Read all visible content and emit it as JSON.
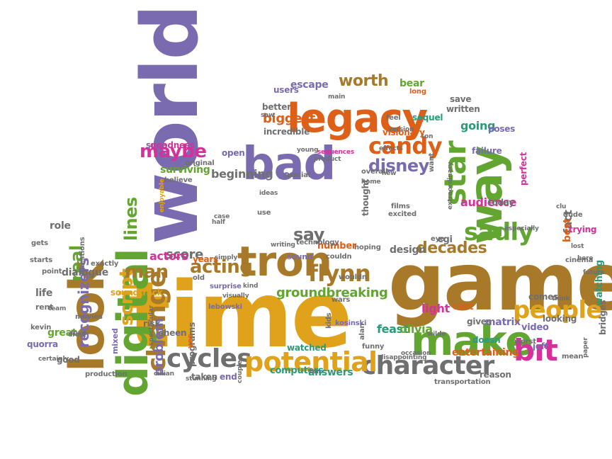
{
  "palette": {
    "purple": "#7a6bb0",
    "mustard": "#e0a11b",
    "brown": "#a87928",
    "green": "#62a631",
    "orange": "#dd5f18",
    "teal": "#2a9a79",
    "pink": "#d6309a",
    "gray": "#6f6f6f"
  },
  "words": [
    {
      "t": "world",
      "c": "purple",
      "v": true
    },
    {
      "t": "time",
      "c": "mustard",
      "v": false
    },
    {
      "t": "game",
      "c": "brown",
      "v": false
    },
    {
      "t": "legacy",
      "c": "orange",
      "v": false
    },
    {
      "t": "bad",
      "c": "purple",
      "v": false
    },
    {
      "t": "tron",
      "c": "brown",
      "v": false
    },
    {
      "t": "make",
      "c": "green",
      "v": false
    },
    {
      "t": "digital",
      "c": "green",
      "v": true
    },
    {
      "t": "way",
      "c": "green",
      "v": true
    },
    {
      "t": "look",
      "c": "brown",
      "v": true
    },
    {
      "t": "people",
      "c": "mustard",
      "v": false
    },
    {
      "t": "character",
      "c": "gray",
      "v": false
    },
    {
      "t": "cycles",
      "c": "gray",
      "v": false
    },
    {
      "t": "potential",
      "c": "mustard",
      "v": false
    },
    {
      "t": "change",
      "c": "brown",
      "v": true
    },
    {
      "t": "sadly",
      "c": "green",
      "v": false
    },
    {
      "t": "star",
      "c": "green",
      "v": true
    },
    {
      "t": "candy",
      "c": "orange",
      "v": false
    },
    {
      "t": "maybe",
      "c": "pink",
      "v": false
    },
    {
      "t": "flynn",
      "c": "brown",
      "v": false
    },
    {
      "t": "bit",
      "c": "pink",
      "v": false
    },
    {
      "t": "disney",
      "c": "purple",
      "v": false
    },
    {
      "t": "worth",
      "c": "brown",
      "v": false
    },
    {
      "t": "acting",
      "c": "brown",
      "v": false
    },
    {
      "t": "script",
      "c": "mustard",
      "v": true
    },
    {
      "t": "lines",
      "c": "green",
      "v": true
    },
    {
      "t": "man",
      "c": "brown",
      "v": false
    },
    {
      "t": "say",
      "c": "gray",
      "v": false
    },
    {
      "t": "real",
      "c": "green",
      "v": true
    },
    {
      "t": "decades",
      "c": "brown",
      "v": false
    },
    {
      "t": "beginning",
      "c": "gray",
      "v": false
    },
    {
      "t": "score",
      "c": "gray",
      "v": false
    },
    {
      "t": "groundbreaking",
      "c": "green",
      "v": false
    },
    {
      "t": "recognizers",
      "c": "purple",
      "v": true
    },
    {
      "t": "problem",
      "c": "purple",
      "v": true
    },
    {
      "t": "audience",
      "c": "pink",
      "v": false
    },
    {
      "t": "escape",
      "c": "purple",
      "v": false
    },
    {
      "t": "bear",
      "c": "green",
      "v": false
    },
    {
      "t": "incredible",
      "c": "gray",
      "v": false
    },
    {
      "t": "biggest",
      "c": "orange",
      "v": false
    },
    {
      "t": "going",
      "c": "teal",
      "v": false
    },
    {
      "t": "actors",
      "c": "pink",
      "v": false
    },
    {
      "t": "entertaining",
      "c": "orange",
      "v": false
    },
    {
      "t": "answers",
      "c": "teal",
      "v": false
    },
    {
      "t": "computers",
      "c": "teal",
      "v": false
    },
    {
      "t": "design",
      "c": "gray",
      "v": false
    },
    {
      "t": "feast",
      "c": "teal",
      "v": false
    },
    {
      "t": "olivia",
      "c": "green",
      "v": false
    },
    {
      "t": "light",
      "c": "pink",
      "v": false
    },
    {
      "t": "cast",
      "c": "orange",
      "v": false
    },
    {
      "t": "matrix",
      "c": "purple",
      "v": false
    },
    {
      "t": "video",
      "c": "purple",
      "v": false
    },
    {
      "t": "reason",
      "c": "gray",
      "v": false
    },
    {
      "t": "dialogue",
      "c": "gray",
      "v": false
    },
    {
      "t": "surviving",
      "c": "green",
      "v": false
    },
    {
      "t": "goes",
      "c": "purple",
      "v": false
    },
    {
      "t": "ideas",
      "c": "gray",
      "v": false
    },
    {
      "t": "number",
      "c": "orange",
      "v": false
    },
    {
      "t": "sound",
      "c": "purple",
      "v": false
    },
    {
      "t": "technology",
      "c": "gray",
      "v": false
    },
    {
      "t": "role",
      "c": "gray",
      "v": false
    },
    {
      "t": "life",
      "c": "gray",
      "v": false
    },
    {
      "t": "rent",
      "c": "gray",
      "v": false
    },
    {
      "t": "great",
      "c": "green",
      "v": false
    },
    {
      "t": "good",
      "c": "gray",
      "v": false
    },
    {
      "t": "production",
      "c": "gray",
      "v": false
    },
    {
      "t": "taken",
      "c": "gray",
      "v": false
    },
    {
      "t": "end",
      "c": "purple",
      "v": false
    },
    {
      "t": "watched",
      "c": "teal",
      "v": false
    },
    {
      "t": "kosinski",
      "c": "purple",
      "v": false
    },
    {
      "t": "soundtrack",
      "c": "mustard",
      "v": false
    },
    {
      "t": "programs",
      "c": "gray",
      "v": true
    },
    {
      "t": "sheen",
      "c": "gray",
      "v": false
    },
    {
      "t": "risk",
      "c": "gray",
      "v": false
    },
    {
      "t": "yes",
      "c": "orange",
      "v": true
    },
    {
      "t": "mixed",
      "c": "purple",
      "v": true
    },
    {
      "t": "years",
      "c": "orange",
      "v": false
    },
    {
      "t": "old",
      "c": "gray",
      "v": false
    },
    {
      "t": "lebowski",
      "c": "purple",
      "v": false
    },
    {
      "t": "surprise",
      "c": "purple",
      "v": false
    },
    {
      "t": "cgi",
      "c": "gray",
      "v": false
    },
    {
      "t": "eye",
      "c": "gray",
      "v": false
    },
    {
      "t": "fact",
      "c": "gray",
      "v": true
    },
    {
      "t": "best",
      "c": "orange",
      "v": true
    },
    {
      "t": "today",
      "c": "gray",
      "v": false
    },
    {
      "t": "perfect",
      "c": "pink",
      "v": true
    },
    {
      "t": "failure",
      "c": "purple",
      "v": false
    },
    {
      "t": "poses",
      "c": "purple",
      "v": false
    },
    {
      "t": "save",
      "c": "gray",
      "v": false
    },
    {
      "t": "written",
      "c": "gray",
      "v": false
    },
    {
      "t": "sequel",
      "c": "teal",
      "v": false
    },
    {
      "t": "long",
      "c": "orange",
      "v": false
    },
    {
      "t": "feel",
      "c": "gray",
      "v": false
    },
    {
      "t": "visionary",
      "c": "orange",
      "v": false
    },
    {
      "t": "users",
      "c": "purple",
      "v": false
    },
    {
      "t": "better",
      "c": "gray",
      "v": false
    },
    {
      "t": "open",
      "c": "purple",
      "v": false
    },
    {
      "t": "sure",
      "c": "purple",
      "v": false
    },
    {
      "t": "goodness",
      "c": "pink",
      "v": false
    },
    {
      "t": "original",
      "c": "gray",
      "v": false
    },
    {
      "t": "believe",
      "c": "gray",
      "v": false
    },
    {
      "t": "enjoyable",
      "c": "mustard",
      "v": true
    },
    {
      "t": "special",
      "c": "gray",
      "v": false
    },
    {
      "t": "overall",
      "c": "gray",
      "v": false
    },
    {
      "t": "want",
      "c": "gray",
      "v": true
    },
    {
      "t": "films",
      "c": "gray",
      "v": false
    },
    {
      "t": "excited",
      "c": "gray",
      "v": false
    },
    {
      "t": "thought",
      "c": "gray",
      "v": true
    },
    {
      "t": "use",
      "c": "gray",
      "v": false
    },
    {
      "t": "comes",
      "c": "gray",
      "v": false
    },
    {
      "t": "looking",
      "c": "gray",
      "v": false
    },
    {
      "t": "watching",
      "c": "teal",
      "v": true
    },
    {
      "t": "bridges",
      "c": "gray",
      "v": true
    },
    {
      "t": "jeff",
      "c": "purple",
      "v": false
    },
    {
      "t": "worst",
      "c": "gray",
      "v": false
    },
    {
      "t": "doesn",
      "c": "teal",
      "v": false
    },
    {
      "t": "gives",
      "c": "gray",
      "v": false
    },
    {
      "t": "trying",
      "c": "pink",
      "v": false
    },
    {
      "t": "dude",
      "c": "gray",
      "v": false
    },
    {
      "t": "cinema",
      "c": "gray",
      "v": false
    },
    {
      "t": "hoping",
      "c": "gray",
      "v": false
    },
    {
      "t": "couldn",
      "c": "gray",
      "v": false
    },
    {
      "t": "wouldn",
      "c": "gray",
      "v": false
    },
    {
      "t": "wars",
      "c": "gray",
      "v": false
    },
    {
      "t": "quorra",
      "c": "purple",
      "v": false
    },
    {
      "t": "kevin",
      "c": "gray",
      "v": false
    },
    {
      "t": "starts",
      "c": "gray",
      "v": false
    },
    {
      "t": "point",
      "c": "gray",
      "v": false
    },
    {
      "t": "exactly",
      "c": "gray",
      "v": false
    },
    {
      "t": "questions",
      "c": "gray",
      "v": true
    },
    {
      "t": "movies",
      "c": "gray",
      "v": false
    },
    {
      "t": "writing",
      "c": "gray",
      "v": false
    },
    {
      "t": "gets",
      "c": "gray",
      "v": false
    },
    {
      "t": "love",
      "c": "gray",
      "v": false
    },
    {
      "t": "transportation",
      "c": "gray",
      "v": false
    },
    {
      "t": "disappointing",
      "c": "gray",
      "v": false
    },
    {
      "t": "funny",
      "c": "gray",
      "v": false
    },
    {
      "t": "alan",
      "c": "gray",
      "v": true
    },
    {
      "t": "kids",
      "c": "gray",
      "v": true
    },
    {
      "t": "wilde",
      "c": "gray",
      "v": false
    },
    {
      "t": "stunning",
      "c": "gray",
      "v": false
    },
    {
      "t": "cillian",
      "c": "gray",
      "v": false
    },
    {
      "t": "mean",
      "c": "gray",
      "v": false
    },
    {
      "t": "especially",
      "c": "gray",
      "v": false
    },
    {
      "t": "main",
      "c": "gray",
      "v": false
    },
    {
      "t": "version",
      "c": "gray",
      "v": false
    },
    {
      "t": "son",
      "c": "gray",
      "v": false
    },
    {
      "t": "effects",
      "c": "gray",
      "v": false
    },
    {
      "t": "new",
      "c": "gray",
      "v": false
    },
    {
      "t": "extraordinary",
      "c": "gray",
      "v": true
    },
    {
      "t": "sequences",
      "c": "pink",
      "v": false
    },
    {
      "t": "product",
      "c": "gray",
      "v": false
    },
    {
      "t": "young",
      "c": "gray",
      "v": false
    },
    {
      "t": "case",
      "c": "gray",
      "v": false
    },
    {
      "t": "half",
      "c": "gray",
      "v": false
    },
    {
      "t": "kind",
      "c": "gray",
      "v": false
    },
    {
      "t": "spectacular",
      "c": "gray",
      "v": true
    },
    {
      "t": "couple",
      "c": "gray",
      "v": true
    },
    {
      "t": "home",
      "c": "gray",
      "v": false
    },
    {
      "t": "visually",
      "c": "gray",
      "v": false
    },
    {
      "t": "simply",
      "c": "gray",
      "v": false
    },
    {
      "t": "occasion",
      "c": "gray",
      "v": false
    },
    {
      "t": "far",
      "c": "gray",
      "v": false
    },
    {
      "t": "certainly",
      "c": "gray",
      "v": false
    },
    {
      "t": "team",
      "c": "gray",
      "v": false
    },
    {
      "t": "drink",
      "c": "gray",
      "v": false
    },
    {
      "t": "future",
      "c": "gray",
      "v": false
    },
    {
      "t": "think",
      "c": "gray",
      "v": false
    },
    {
      "t": "clu",
      "c": "gray",
      "v": false
    },
    {
      "t": "lost",
      "c": "gray",
      "v": false
    },
    {
      "t": "saw",
      "c": "gray",
      "v": false
    },
    {
      "t": "here",
      "c": "gray",
      "v": false
    },
    {
      "t": "paper",
      "c": "gray",
      "v": true
    }
  ]
}
